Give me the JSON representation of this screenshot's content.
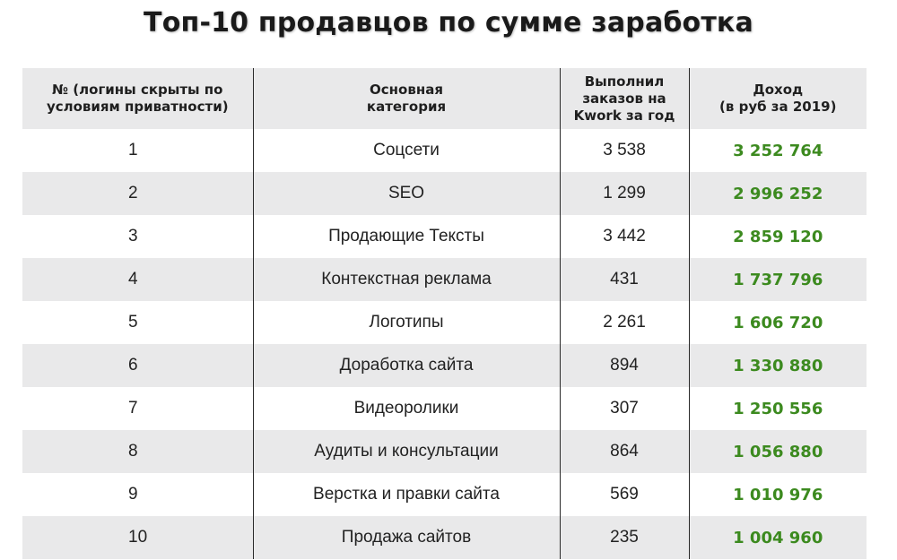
{
  "title": "Топ-10 продавцов по сумме заработка",
  "colors": {
    "income": "#3c8a1f",
    "stripe": "#e9e9ea"
  },
  "chart_data": {
    "type": "table",
    "title": "Топ-10 продавцов по сумме заработка",
    "columns": [
      {
        "line1": "№ (логины скрыты по",
        "line2": "условиям приватности)"
      },
      {
        "line1": "Основная",
        "line2": "категория"
      },
      {
        "line1": "Выполнил",
        "line2": "заказов на",
        "line3": "Kwork за год"
      },
      {
        "line1": "Доход",
        "line2": "(в руб за 2019)"
      }
    ],
    "rows": [
      {
        "num": "1",
        "category": "Соцсети",
        "orders": "3 538",
        "income": "3 252 764"
      },
      {
        "num": "2",
        "category": "SEO",
        "orders": "1 299",
        "income": "2 996 252"
      },
      {
        "num": "3",
        "category": "Продающие Тексты",
        "orders": "3 442",
        "income": "2 859 120"
      },
      {
        "num": "4",
        "category": "Контекстная реклама",
        "orders": "431",
        "income": "1 737 796"
      },
      {
        "num": "5",
        "category": "Логотипы",
        "orders": "2 261",
        "income": "1 606 720"
      },
      {
        "num": "6",
        "category": "Доработка сайта",
        "orders": "894",
        "income": "1 330 880"
      },
      {
        "num": "7",
        "category": "Видеоролики",
        "orders": "307",
        "income": "1 250 556"
      },
      {
        "num": "8",
        "category": "Аудиты и консультации",
        "orders": "864",
        "income": "1 056 880"
      },
      {
        "num": "9",
        "category": "Верстка и правки сайта",
        "orders": "569",
        "income": "1 010 976"
      },
      {
        "num": "10",
        "category": "Продажа сайтов",
        "orders": "235",
        "income": "1 004 960"
      }
    ]
  }
}
